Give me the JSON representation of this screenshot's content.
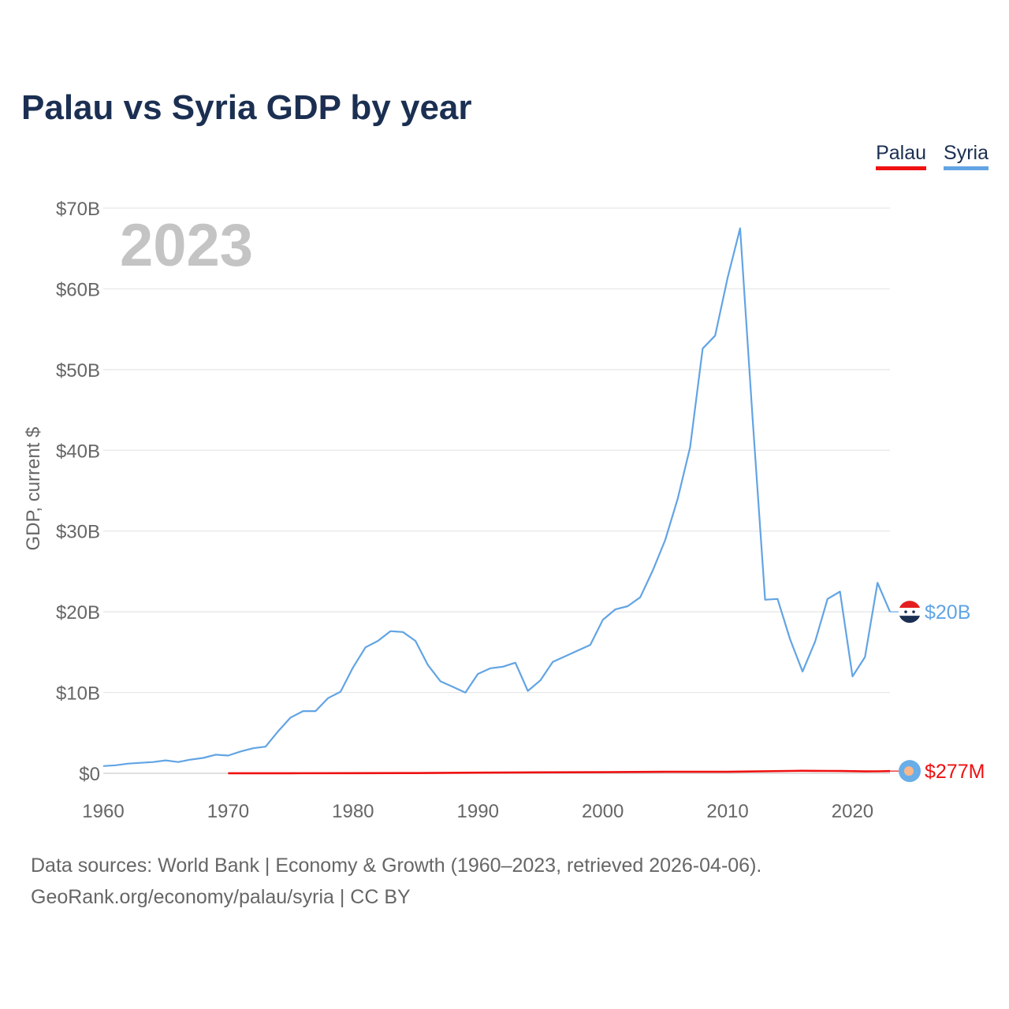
{
  "title": "Palau vs Syria GDP by year",
  "legend": [
    {
      "label": "Palau",
      "color": "#ee1111"
    },
    {
      "label": "Syria",
      "color": "#62a4e4"
    }
  ],
  "sources": {
    "line1": "Data sources: World Bank | Economy & Growth (1960–2023, retrieved 2026-04-06).",
    "line2": "GeoRank.org/economy/palau/syria | CC BY"
  },
  "chart_data": {
    "type": "line",
    "title": "Palau vs Syria GDP by year",
    "year_watermark": "2023",
    "xlabel": "",
    "ylabel": "GDP, current $",
    "xlim": [
      1960,
      2023
    ],
    "ylim": [
      0,
      70
    ],
    "unit": "billions USD",
    "x_ticks": [
      1960,
      1970,
      1980,
      1990,
      2000,
      2010,
      2020
    ],
    "x_tick_labels": [
      "1960",
      "1970",
      "1980",
      "1990",
      "2000",
      "2010",
      "2020"
    ],
    "y_ticks": [
      0,
      10,
      20,
      30,
      40,
      50,
      60,
      70
    ],
    "y_tick_labels": [
      "$0",
      "$10B",
      "$20B",
      "$30B",
      "$40B",
      "$50B",
      "$60B",
      "$70B"
    ],
    "grid": true,
    "series": [
      {
        "name": "Syria",
        "color": "#62a4e4",
        "end_label": "$20B",
        "flag_icon": "syria-flag-icon",
        "x": [
          1960,
          1961,
          1962,
          1963,
          1964,
          1965,
          1966,
          1967,
          1968,
          1969,
          1970,
          1971,
          1972,
          1973,
          1974,
          1975,
          1976,
          1977,
          1978,
          1979,
          1980,
          1981,
          1982,
          1983,
          1984,
          1985,
          1986,
          1987,
          1988,
          1989,
          1990,
          1991,
          1992,
          1993,
          1994,
          1995,
          1996,
          1997,
          1998,
          1999,
          2000,
          2001,
          2002,
          2003,
          2004,
          2005,
          2006,
          2007,
          2008,
          2009,
          2010,
          2011,
          2012,
          2013,
          2014,
          2015,
          2016,
          2017,
          2018,
          2019,
          2020,
          2021,
          2022,
          2023
        ],
        "values": [
          0.9,
          1.0,
          1.2,
          1.3,
          1.4,
          1.6,
          1.4,
          1.7,
          1.9,
          2.3,
          2.2,
          2.7,
          3.1,
          3.3,
          5.2,
          6.9,
          7.7,
          7.7,
          9.3,
          10.1,
          13.1,
          15.6,
          16.4,
          17.6,
          17.5,
          16.4,
          13.4,
          11.4,
          10.7,
          10.0,
          12.3,
          13.0,
          13.2,
          13.7,
          10.2,
          11.5,
          13.8,
          14.5,
          15.2,
          15.9,
          19.0,
          20.3,
          20.7,
          21.8,
          25.1,
          28.9,
          34.0,
          40.4,
          52.6,
          54.2,
          61.4,
          67.5,
          44.0,
          21.5,
          21.6,
          16.6,
          12.6,
          16.3,
          21.6,
          22.5,
          12.0,
          14.4,
          23.6,
          20.0
        ]
      },
      {
        "name": "Palau",
        "color": "#ee1111",
        "end_label": "$277M",
        "flag_icon": "palau-flag-icon",
        "x": [
          1970,
          1975,
          1980,
          1985,
          1990,
          1995,
          2000,
          2005,
          2010,
          2015,
          2016,
          2017,
          2018,
          2019,
          2020,
          2021,
          2022,
          2023
        ],
        "values": [
          0.01,
          0.01,
          0.02,
          0.03,
          0.08,
          0.12,
          0.14,
          0.19,
          0.19,
          0.29,
          0.31,
          0.3,
          0.29,
          0.28,
          0.26,
          0.23,
          0.24,
          0.277
        ]
      }
    ]
  }
}
